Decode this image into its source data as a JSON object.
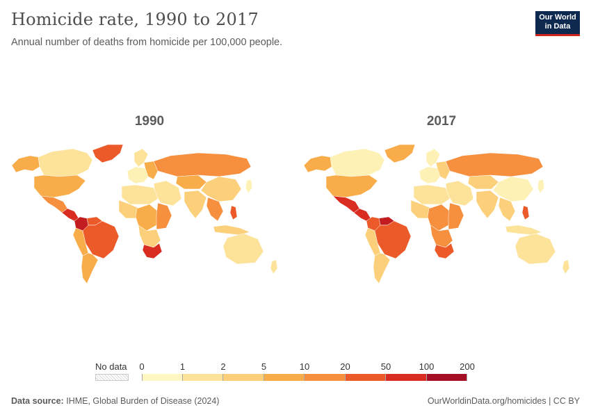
{
  "header": {
    "title": "Homicide rate, 1990 to 2017",
    "subtitle": "Annual number of deaths from homicide per 100,000 people."
  },
  "logo": {
    "line1": "Our World",
    "line2": "in Data",
    "bg_color": "#0d2950",
    "accent_color": "#ce261e"
  },
  "maps": [
    {
      "year": "1990",
      "regions": {
        "canada": "#fde39a",
        "alaska": "#f9ac4a",
        "greenland": "#ec5a2a",
        "usa": "#f9ac4a",
        "mexico": "#f68f3e",
        "central_america": "#d92d22",
        "colombia": "#c31c20",
        "venezuela": "#ec5a2a",
        "brazil": "#ec5a2a",
        "andes": "#f9ac4a",
        "southern_cone": "#f9ac4a",
        "europe_west": "#fef1b5",
        "scandinavia": "#fde39a",
        "eastern_europe": "#f9ac4a",
        "russia": "#f68f3e",
        "north_africa": "#fde39a",
        "west_africa": "#fcd07a",
        "central_africa": "#f9ac4a",
        "east_africa": "#f68f3e",
        "southern_africa": "#fcd07a",
        "south_africa": "#d92d22",
        "middle_east": "#fde39a",
        "central_asia": "#f9ac4a",
        "india": "#fcd07a",
        "china": "#fcd07a",
        "southeast_asia": "#f68f3e",
        "philippines": "#ec5a2a",
        "indonesia": "#fcd07a",
        "japan": "#fef1b5",
        "australia": "#fde39a",
        "new_zealand": "#fde39a"
      }
    },
    {
      "year": "2017",
      "regions": {
        "canada": "#fef1b5",
        "alaska": "#f9ac4a",
        "greenland": "#f9ac4a",
        "usa": "#f9ac4a",
        "mexico": "#d92d22",
        "central_america": "#d92d22",
        "colombia": "#ec5a2a",
        "venezuela": "#c31c20",
        "brazil": "#ec5a2a",
        "andes": "#fcd07a",
        "southern_cone": "#fcd07a",
        "europe_west": "#fef1b5",
        "scandinavia": "#fef1b5",
        "eastern_europe": "#fcd07a",
        "russia": "#f68f3e",
        "north_africa": "#fde39a",
        "west_africa": "#fcd07a",
        "central_africa": "#f68f3e",
        "east_africa": "#f68f3e",
        "southern_africa": "#f68f3e",
        "south_africa": "#ec5a2a",
        "middle_east": "#fde39a",
        "central_asia": "#fcd07a",
        "india": "#fcd07a",
        "china": "#fef1b5",
        "southeast_asia": "#fcd07a",
        "philippines": "#ec5a2a",
        "indonesia": "#fde39a",
        "japan": "#fef1b5",
        "australia": "#fde39a",
        "new_zealand": "#fde39a"
      }
    }
  ],
  "legend": {
    "no_data_label": "No data",
    "ticks": [
      "0",
      "1",
      "2",
      "5",
      "10",
      "20",
      "50",
      "100",
      "200"
    ],
    "colors": [
      "#fef7c3",
      "#fde39a",
      "#fcd07a",
      "#f9ac4a",
      "#f68f3e",
      "#ec5a2a",
      "#d92d22",
      "#a50f26"
    ]
  },
  "footer": {
    "source_label": "Data source:",
    "source_text": "IHME, Global Burden of Disease (2024)",
    "right_text": "OurWorldinData.org/homicides | CC BY"
  }
}
